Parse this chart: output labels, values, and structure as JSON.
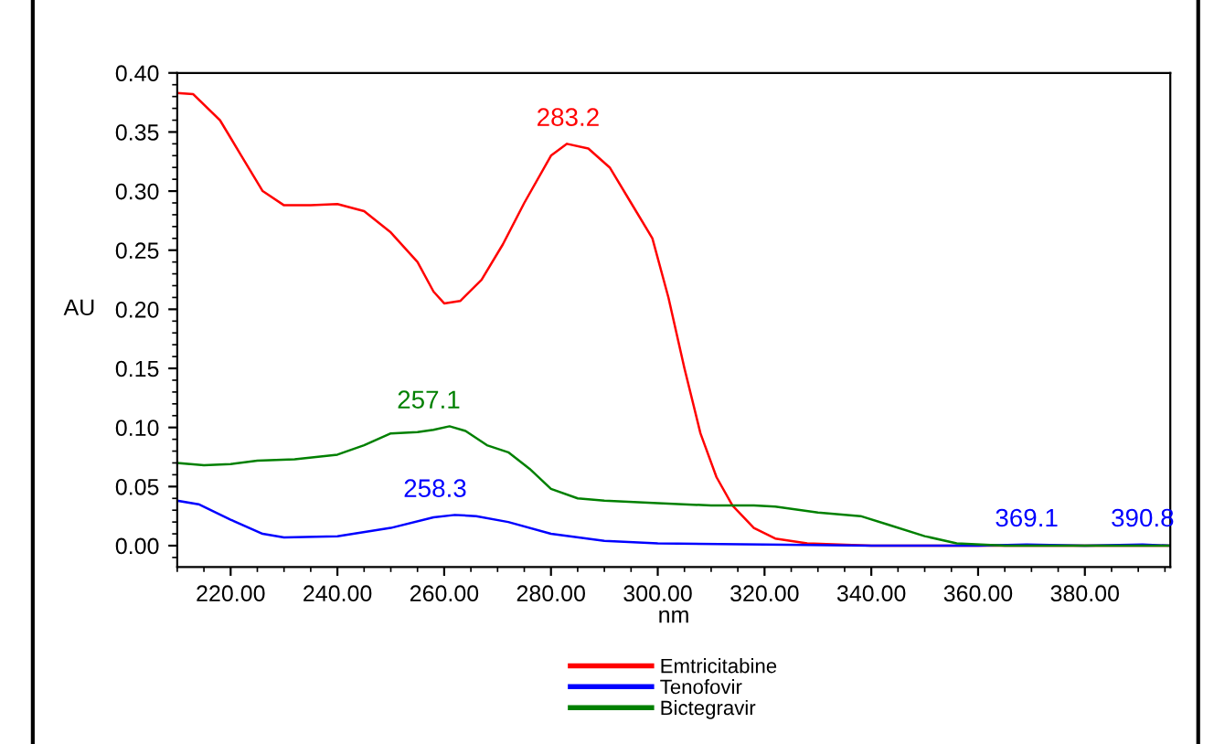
{
  "chart_data": {
    "type": "line",
    "xlabel": "nm",
    "ylabel": "AU",
    "xlim": [
      210,
      396
    ],
    "ylim": [
      -0.018,
      0.4
    ],
    "xticks": [
      {
        "value": 220,
        "label": "220.00"
      },
      {
        "value": 240,
        "label": "240.00"
      },
      {
        "value": 260,
        "label": "260.00"
      },
      {
        "value": 280,
        "label": "280.00"
      },
      {
        "value": 300,
        "label": "300.00"
      },
      {
        "value": 320,
        "label": "320.00"
      },
      {
        "value": 340,
        "label": "340.00"
      },
      {
        "value": 360,
        "label": "360.00"
      },
      {
        "value": 380,
        "label": "380.00"
      }
    ],
    "yticks": [
      {
        "value": 0,
        "label": "0.00"
      },
      {
        "value": 0.05,
        "label": "0.05"
      },
      {
        "value": 0.1,
        "label": "0.10"
      },
      {
        "value": 0.15,
        "label": "0.15"
      },
      {
        "value": 0.2,
        "label": "0.20"
      },
      {
        "value": 0.25,
        "label": "0.25"
      },
      {
        "value": 0.3,
        "label": "0.30"
      },
      {
        "value": 0.35,
        "label": "0.35"
      },
      {
        "value": 0.4,
        "label": "0.40"
      }
    ],
    "grid": false,
    "legend": "bottom",
    "marker": "none",
    "line_style": "solid",
    "series": [
      {
        "name": "Emtricitabine",
        "color": "#ff0000",
        "x": [
          210,
          213,
          218,
          222,
          226,
          230,
          235,
          240,
          245,
          250,
          255,
          258,
          260,
          263,
          267,
          271,
          275,
          280,
          283,
          287,
          291,
          295,
          299,
          302,
          305,
          308,
          311,
          314,
          318,
          322,
          328,
          340,
          396
        ],
        "values": [
          0.383,
          0.382,
          0.36,
          0.33,
          0.3,
          0.288,
          0.288,
          0.289,
          0.283,
          0.265,
          0.24,
          0.215,
          0.205,
          0.207,
          0.225,
          0.255,
          0.29,
          0.33,
          0.34,
          0.336,
          0.32,
          0.29,
          0.26,
          0.21,
          0.15,
          0.095,
          0.058,
          0.034,
          0.015,
          0.006,
          0.002,
          0.0,
          0.0
        ]
      },
      {
        "name": "Tenofovir",
        "color": "#0000ff",
        "x": [
          210,
          214,
          220,
          226,
          230,
          240,
          250,
          258,
          262,
          266,
          272,
          280,
          290,
          300,
          320,
          340,
          360,
          369.1,
          380,
          390.8,
          396
        ],
        "values": [
          0.038,
          0.035,
          0.022,
          0.01,
          0.007,
          0.008,
          0.015,
          0.024,
          0.026,
          0.025,
          0.02,
          0.01,
          0.004,
          0.002,
          0.001,
          0.0,
          0.0,
          0.001,
          0.0,
          0.001,
          0.0
        ]
      },
      {
        "name": "Bictegravir",
        "color": "#008000",
        "x": [
          210,
          215,
          220,
          225,
          232,
          240,
          245,
          250,
          255,
          258,
          261,
          264,
          268,
          272,
          276,
          280,
          285,
          290,
          300,
          310,
          318,
          322,
          330,
          338,
          343,
          350,
          356,
          365,
          396
        ],
        "values": [
          0.07,
          0.068,
          0.069,
          0.072,
          0.073,
          0.077,
          0.085,
          0.095,
          0.096,
          0.098,
          0.101,
          0.097,
          0.085,
          0.079,
          0.065,
          0.048,
          0.04,
          0.038,
          0.036,
          0.034,
          0.034,
          0.033,
          0.028,
          0.025,
          0.018,
          0.008,
          0.002,
          0.0,
          0.0
        ]
      }
    ],
    "annotations": [
      {
        "text": "283.2",
        "x": 283.2,
        "y": 0.34
      },
      {
        "text": "257.1",
        "x": 257.1,
        "y": 0.101
      },
      {
        "text": "258.3",
        "x": 258.3,
        "y": 0.026
      },
      {
        "text": "369.1",
        "x": 369.1,
        "y": 0.001
      },
      {
        "text": "390.8",
        "x": 390.8,
        "y": 0.001
      }
    ]
  }
}
